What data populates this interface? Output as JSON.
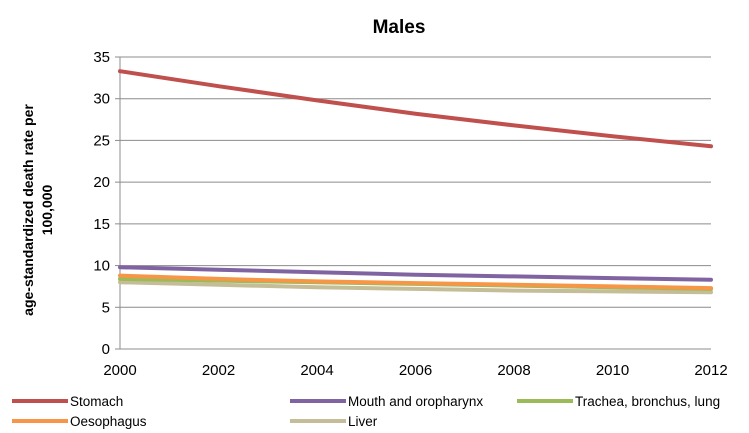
{
  "chart_data": {
    "type": "line",
    "title": "Males",
    "xlabel": "",
    "ylabel_lines": [
      "age-standardized death rate per",
      "100,000"
    ],
    "x": [
      2000,
      2002,
      2004,
      2006,
      2008,
      2010,
      2012
    ],
    "xlim": [
      2000,
      2012
    ],
    "ylim": [
      0,
      35
    ],
    "yticks": [
      0,
      5,
      10,
      15,
      20,
      25,
      30,
      35
    ],
    "grid": true,
    "legend_position": "bottom",
    "series": [
      {
        "name": "Stomach",
        "color": "#c0504d",
        "values": [
          33.3,
          31.5,
          29.8,
          28.2,
          26.8,
          25.5,
          24.3
        ]
      },
      {
        "name": "Mouth and oropharynx",
        "color": "#8064a2",
        "values": [
          9.8,
          9.5,
          9.2,
          8.9,
          8.7,
          8.5,
          8.3
        ]
      },
      {
        "name": "Trachea, bronchus, lung",
        "color": "#9bbb59",
        "values": [
          8.4,
          8.2,
          8.0,
          7.8,
          7.6,
          7.4,
          7.2
        ]
      },
      {
        "name": "Oesophagus",
        "color": "#f79646",
        "values": [
          8.8,
          8.4,
          8.1,
          7.9,
          7.7,
          7.5,
          7.3
        ]
      },
      {
        "name": "Liver",
        "color": "#c4bd97",
        "values": [
          8.0,
          7.7,
          7.4,
          7.2,
          7.0,
          6.9,
          6.8
        ]
      }
    ]
  }
}
